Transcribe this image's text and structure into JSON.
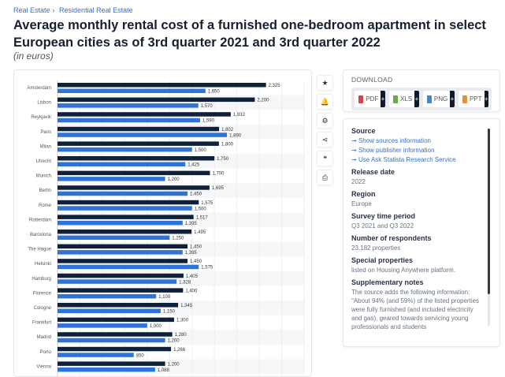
{
  "breadcrumb": [
    "Real Estate",
    "Residential Real Estate"
  ],
  "title": "Average monthly rental cost of a furnished one-bedroom apartment in select European cities as of 3rd quarter 2021 and 3rd quarter 2022",
  "subtitle": "(in euros)",
  "toolbar": {
    "icons": [
      "star-icon",
      "bell-icon",
      "gear-icon",
      "share-icon",
      "quote-icon",
      "print-icon"
    ],
    "glyphs": [
      "★",
      "🔔",
      "⚙",
      "⋖",
      "❝",
      "⎙"
    ]
  },
  "download": {
    "heading": "DOWNLOAD",
    "buttons": [
      "PDF",
      "XLS",
      "PNG",
      "PPT"
    ],
    "plus": "+"
  },
  "info": {
    "source_label": "Source",
    "links": [
      "Show sources information",
      "Show publisher information",
      "Use Ask Statista Research Service"
    ],
    "arrow": "➞",
    "release_label": "Release date",
    "release": "2022",
    "region_label": "Region",
    "region": "Europe",
    "survey_label": "Survey time period",
    "survey": "Q3 2021 and Q3 2022",
    "resp_label": "Number of respondents",
    "resp": "23,182 properties",
    "special_label": "Special properties",
    "special": "listed on Housing Anywhere platform.",
    "notes_label": "Supplementary notes",
    "notes": "The source adds the following information: \"About 94% (and 59%) of the listed properties were fully furnished (and included electricity and gas), geared towards servicing young professionals and students"
  },
  "chart_data": {
    "type": "bar",
    "orientation": "horizontal",
    "grid": true,
    "xlim": [
      0,
      2750
    ],
    "colors": [
      "#0f2138",
      "#2f72d8"
    ],
    "categories": [
      "Amsterdam",
      "Lisbon",
      "Reykjavik",
      "Paris",
      "Milan",
      "Utrecht",
      "Munich",
      "Berlin",
      "Rome",
      "Rotterdam",
      "Barcelona",
      "The Hague",
      "Helsinki",
      "Hamburg",
      "Florence",
      "Cologne",
      "Frankfurt",
      "Madrid",
      "Porto",
      "Vienna"
    ],
    "series": [
      {
        "values": [
          2325,
          2200,
          1932,
          1802,
          1800,
          1750,
          1700,
          1695,
          1575,
          1517,
          1495,
          1450,
          1450,
          1405,
          1400,
          1345,
          1300,
          1280,
          1266,
          1200
        ]
      },
      {
        "values": [
          1650,
          1570,
          1590,
          1890,
          1500,
          1425,
          1200,
          1450,
          1500,
          1395,
          1250,
          1395,
          1575,
          1328,
          1100,
          1150,
          1000,
          1200,
          850,
          1088
        ]
      }
    ]
  }
}
